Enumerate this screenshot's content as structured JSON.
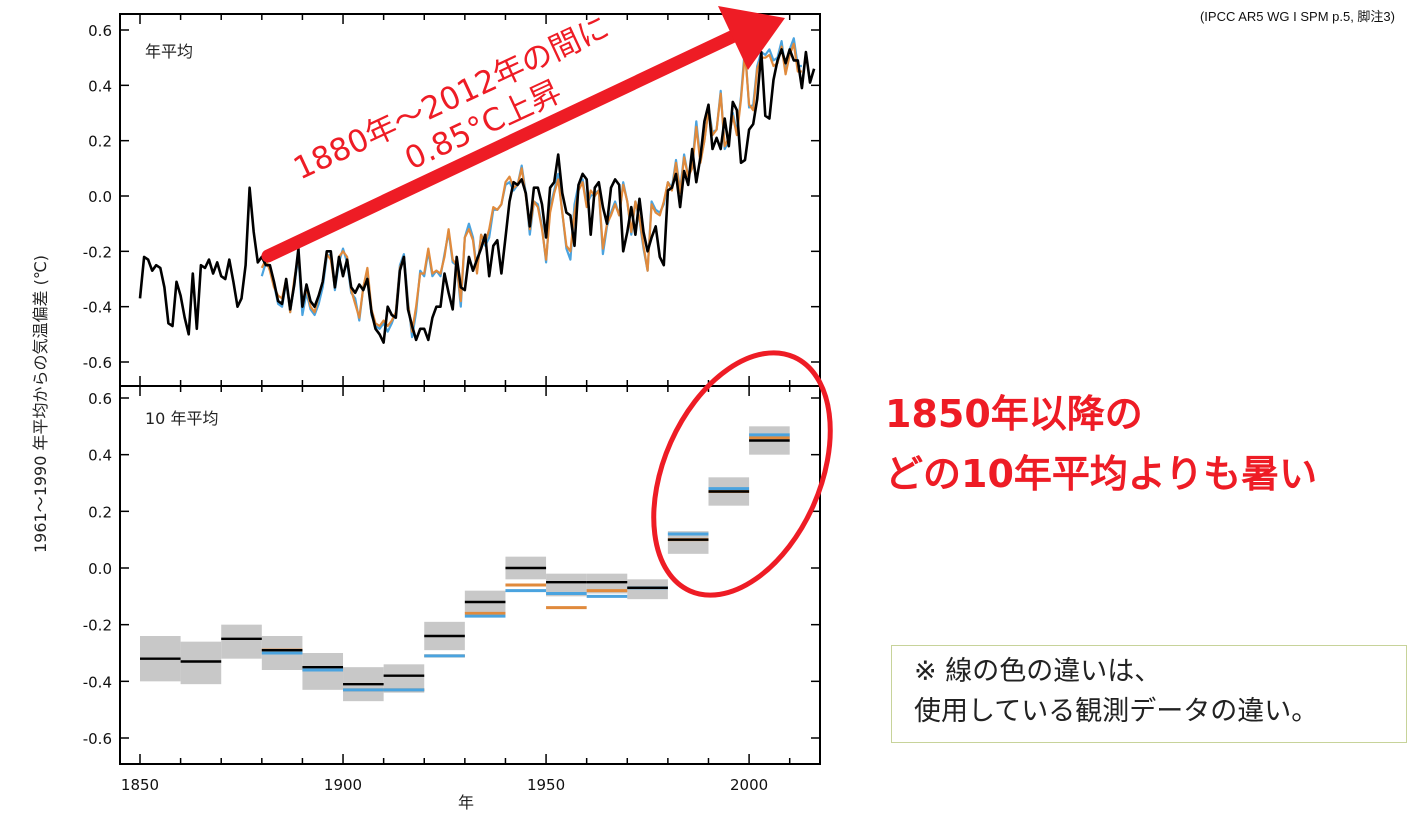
{
  "source_note": "(IPCC AR5 WG I SPM p.5, 脚注3)",
  "callout": {
    "line1": "1850年以降の",
    "line2": "どの10年平均よりも暑い"
  },
  "note": {
    "line1": "※ 線の色の違いは、",
    "line2": "使用している観測データの違い。"
  },
  "arrow_annotation": {
    "line1": "1880年〜2012年の間に",
    "line2": "0.85°C上昇"
  },
  "colors": {
    "annotation_red": "#ee1c25",
    "series_black": "#000000",
    "series_blue": "#4aa3df",
    "series_orange": "#e08a3c",
    "uncertainty_band": "#c8c8c8"
  },
  "chart_data": [
    {
      "type": "line",
      "title": "年平均",
      "xlabel": "年",
      "ylabel": "1961〜1990 年平均からの気温偏差 (℃)",
      "xlim": [
        1850,
        2012
      ],
      "ylim": [
        -0.7,
        0.65
      ],
      "x_ticks": [
        1850,
        1900,
        1950,
        2000
      ],
      "y_ticks": [
        -0.6,
        -0.4,
        -0.2,
        0.0,
        0.2,
        0.4,
        0.6
      ],
      "y_tick_labels": [
        "-0.6",
        "-0.4",
        "-0.2",
        "0.0",
        "0.2",
        "0.4",
        "0.6"
      ],
      "x_start": 1850,
      "series": [
        {
          "color": "#000000",
          "x_start": 1850,
          "values": [
            -0.37,
            -0.22,
            -0.23,
            -0.27,
            -0.25,
            -0.26,
            -0.33,
            -0.46,
            -0.47,
            -0.31,
            -0.36,
            -0.44,
            -0.5,
            -0.28,
            -0.48,
            -0.25,
            -0.26,
            -0.23,
            -0.28,
            -0.24,
            -0.29,
            -0.3,
            -0.23,
            -0.31,
            -0.4,
            -0.37,
            -0.25,
            0.03,
            -0.13,
            -0.24,
            -0.22,
            -0.25,
            -0.25,
            -0.31,
            -0.38,
            -0.39,
            -0.3,
            -0.41,
            -0.32,
            -0.19,
            -0.4,
            -0.32,
            -0.38,
            -0.4,
            -0.36,
            -0.31,
            -0.2,
            -0.2,
            -0.33,
            -0.22,
            -0.29,
            -0.23,
            -0.33,
            -0.35,
            -0.32,
            -0.34,
            -0.3,
            -0.42,
            -0.48,
            -0.5,
            -0.53,
            -0.4,
            -0.43,
            -0.44,
            -0.27,
            -0.22,
            -0.41,
            -0.47,
            -0.52,
            -0.48,
            -0.48,
            -0.52,
            -0.44,
            -0.4,
            -0.4,
            -0.28,
            -0.35,
            -0.41,
            -0.22,
            -0.33,
            -0.34,
            -0.22,
            -0.27,
            -0.23,
            -0.19,
            -0.14,
            -0.29,
            -0.18,
            -0.16,
            -0.28,
            -0.15,
            -0.02,
            0.05,
            0.04,
            0.06,
            0.01,
            -0.11,
            0.03,
            0.03,
            -0.03,
            -0.15,
            0.03,
            0.05,
            0.15,
            0.01,
            -0.06,
            -0.07,
            -0.18,
            0.04,
            0.08,
            0.06,
            -0.14,
            0.03,
            0.05,
            -0.04,
            -0.1,
            0.03,
            0.06,
            0.04,
            -0.2,
            -0.13,
            -0.04,
            -0.14,
            -0.01,
            -0.13,
            -0.2,
            -0.15,
            -0.11,
            -0.22,
            -0.25,
            0.02,
            0.03,
            0.08,
            -0.04,
            0.09,
            0.04,
            0.17,
            0.05,
            0.14,
            0.27,
            0.33,
            0.17,
            0.21,
            0.17,
            0.28,
            0.18,
            0.34,
            0.31,
            0.12,
            0.13,
            0.24,
            0.26,
            0.35,
            0.52,
            0.29,
            0.28,
            0.42,
            0.49,
            0.53,
            0.48,
            0.53,
            0.49,
            0.49,
            0.39,
            0.52,
            0.41,
            0.46
          ]
        },
        {
          "color": "#4aa3df",
          "x_start": 1880,
          "values": [
            -0.29,
            -0.24,
            -0.26,
            -0.32,
            -0.39,
            -0.4,
            -0.31,
            -0.42,
            -0.32,
            -0.22,
            -0.43,
            -0.35,
            -0.41,
            -0.43,
            -0.39,
            -0.33,
            -0.22,
            -0.21,
            -0.34,
            -0.24,
            -0.19,
            -0.24,
            -0.35,
            -0.37,
            -0.45,
            -0.33,
            -0.27,
            -0.43,
            -0.47,
            -0.48,
            -0.46,
            -0.49,
            -0.46,
            -0.42,
            -0.25,
            -0.21,
            -0.38,
            -0.51,
            -0.42,
            -0.27,
            -0.29,
            -0.2,
            -0.29,
            -0.27,
            -0.29,
            -0.21,
            -0.13,
            -0.24,
            -0.25,
            -0.4,
            -0.15,
            -0.1,
            -0.15,
            -0.27,
            -0.14,
            -0.18,
            -0.15,
            -0.05,
            -0.05,
            -0.03,
            0.04,
            0.05,
            0.02,
            0.04,
            0.11,
            0.01,
            -0.14,
            -0.02,
            -0.03,
            -0.11,
            -0.24,
            -0.04,
            0.02,
            0.08,
            -0.06,
            -0.19,
            -0.23,
            -0.03,
            0.04,
            0.06,
            -0.03,
            0.0,
            0.01,
            0.02,
            -0.21,
            -0.11,
            -0.06,
            -0.02,
            -0.07,
            0.05,
            -0.02,
            -0.14,
            -0.02,
            -0.09,
            -0.19,
            -0.27,
            -0.02,
            -0.05,
            -0.06,
            -0.03,
            0.05,
            0.03,
            0.13,
            0.02,
            0.15,
            0.07,
            0.11,
            0.27,
            0.13,
            0.2,
            0.32,
            0.23,
            0.24,
            0.38,
            0.17,
            0.2,
            0.3,
            0.23,
            0.36,
            0.54,
            0.32,
            0.33,
            0.47,
            0.52,
            0.51,
            0.53,
            0.49,
            0.5,
            0.56,
            0.45,
            0.53,
            0.57,
            0.47,
            0.47
          ]
        },
        {
          "color": "#e08a3c",
          "x_start": 1880,
          "values": [
            -0.26,
            -0.23,
            -0.27,
            -0.33,
            -0.36,
            -0.37,
            -0.3,
            -0.42,
            -0.3,
            -0.21,
            -0.4,
            -0.33,
            -0.4,
            -0.42,
            -0.36,
            -0.31,
            -0.21,
            -0.23,
            -0.33,
            -0.22,
            -0.2,
            -0.22,
            -0.34,
            -0.39,
            -0.44,
            -0.33,
            -0.26,
            -0.41,
            -0.46,
            -0.47,
            -0.45,
            -0.47,
            -0.45,
            -0.42,
            -0.26,
            -0.22,
            -0.39,
            -0.49,
            -0.4,
            -0.28,
            -0.28,
            -0.19,
            -0.28,
            -0.27,
            -0.28,
            -0.22,
            -0.12,
            -0.23,
            -0.25,
            -0.38,
            -0.15,
            -0.12,
            -0.16,
            -0.28,
            -0.14,
            -0.17,
            -0.12,
            -0.04,
            -0.05,
            -0.03,
            0.05,
            0.07,
            0.03,
            0.04,
            0.1,
            0.0,
            -0.12,
            -0.02,
            -0.04,
            -0.12,
            -0.23,
            -0.06,
            0.01,
            0.06,
            -0.06,
            -0.18,
            -0.2,
            -0.06,
            0.02,
            0.05,
            -0.04,
            0.02,
            0.0,
            0.02,
            -0.19,
            -0.1,
            -0.07,
            -0.03,
            -0.07,
            0.04,
            -0.02,
            -0.13,
            -0.02,
            -0.08,
            -0.18,
            -0.27,
            -0.03,
            -0.06,
            -0.07,
            -0.02,
            0.05,
            0.02,
            0.12,
            0.01,
            0.14,
            0.07,
            0.1,
            0.25,
            0.12,
            0.2,
            0.31,
            0.22,
            0.24,
            0.37,
            0.18,
            0.21,
            0.29,
            0.22,
            0.35,
            0.52,
            0.33,
            0.31,
            0.46,
            0.5,
            0.5,
            0.51,
            0.47,
            0.48,
            0.54,
            0.44,
            0.51,
            0.55,
            0.45,
            0.45
          ]
        }
      ]
    },
    {
      "type": "bar",
      "title": "10 年平均",
      "xlabel": "年",
      "ylabel": "1961〜1990 年平均からの気温偏差 (℃)",
      "xlim": [
        1850,
        2012
      ],
      "ylim": [
        -0.7,
        0.65
      ],
      "x_ticks": [
        1850,
        1900,
        1950,
        2000
      ],
      "y_ticks": [
        -0.6,
        -0.4,
        -0.2,
        0.0,
        0.2,
        0.4,
        0.6
      ],
      "y_tick_labels": [
        "-0.6",
        "-0.4",
        "-0.2",
        "0.0",
        "0.2",
        "0.4",
        "0.6"
      ],
      "decades": [
        {
          "start": 1850,
          "end": 1860,
          "black": -0.32,
          "low": -0.4,
          "high": -0.24
        },
        {
          "start": 1860,
          "end": 1870,
          "black": -0.33,
          "low": -0.41,
          "high": -0.26
        },
        {
          "start": 1870,
          "end": 1880,
          "black": -0.25,
          "low": -0.32,
          "high": -0.2
        },
        {
          "start": 1880,
          "end": 1890,
          "black": -0.29,
          "blue": -0.3,
          "orange": -0.29,
          "low": -0.36,
          "high": -0.24
        },
        {
          "start": 1890,
          "end": 1900,
          "black": -0.35,
          "blue": -0.36,
          "orange": -0.36,
          "low": -0.43,
          "high": -0.3
        },
        {
          "start": 1900,
          "end": 1910,
          "black": -0.41,
          "blue": -0.43,
          "orange": -0.43,
          "low": -0.47,
          "high": -0.35
        },
        {
          "start": 1910,
          "end": 1920,
          "black": -0.38,
          "blue": -0.43,
          "orange": -0.43,
          "low": -0.44,
          "high": -0.34
        },
        {
          "start": 1920,
          "end": 1930,
          "black": -0.24,
          "blue": -0.31,
          "orange": -0.31,
          "low": -0.29,
          "high": -0.19
        },
        {
          "start": 1930,
          "end": 1940,
          "black": -0.12,
          "blue": -0.17,
          "orange": -0.16,
          "low": -0.16,
          "high": -0.08
        },
        {
          "start": 1940,
          "end": 1950,
          "black": 0.0,
          "blue": -0.08,
          "orange": -0.06,
          "low": -0.04,
          "high": 0.04
        },
        {
          "start": 1950,
          "end": 1960,
          "black": -0.05,
          "blue": -0.09,
          "orange": -0.14,
          "low": -0.1,
          "high": -0.02
        },
        {
          "start": 1960,
          "end": 1970,
          "black": -0.05,
          "blue": -0.1,
          "orange": -0.08,
          "low": -0.09,
          "high": -0.02
        },
        {
          "start": 1970,
          "end": 1980,
          "black": -0.07,
          "blue": -0.07,
          "orange": -0.07,
          "low": -0.11,
          "high": -0.04
        },
        {
          "start": 1980,
          "end": 1990,
          "black": 0.1,
          "blue": 0.12,
          "orange": 0.1,
          "low": 0.05,
          "high": 0.13
        },
        {
          "start": 1990,
          "end": 2000,
          "black": 0.27,
          "blue": 0.28,
          "orange": 0.27,
          "low": 0.22,
          "high": 0.32
        },
        {
          "start": 2000,
          "end": 2010,
          "black": 0.45,
          "blue": 0.47,
          "orange": 0.46,
          "low": 0.4,
          "high": 0.5
        }
      ]
    }
  ]
}
